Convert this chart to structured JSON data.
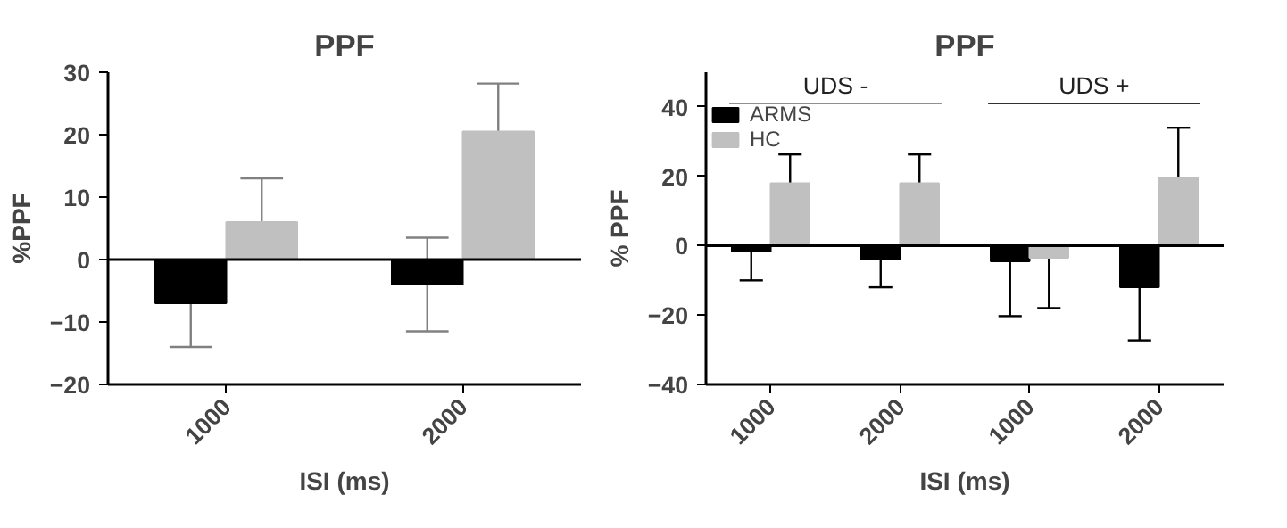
{
  "chart_data": [
    {
      "type": "bar",
      "title": "PPF",
      "xlabel": "ISI (ms)",
      "ylabel": "%PPF",
      "categories": [
        "1000",
        "2000"
      ],
      "ylim": [
        -20,
        30
      ],
      "yticks": [
        -20,
        -10,
        0,
        10,
        20,
        30
      ],
      "grid": false,
      "series": [
        {
          "color": "#000000",
          "values": [
            -7,
            -4
          ],
          "errors": [
            [
              -14,
              -7
            ],
            7.5
          ]
        },
        {
          "color": "#c0c0c0",
          "values": [
            6,
            20.5
          ],
          "errors": [
            [
              6,
              13
            ],
            [
              20.5,
              28.2
            ]
          ]
        }
      ],
      "ref_lines": [
        {
          "axis": "y",
          "value": 0,
          "color": "#000000"
        }
      ]
    },
    {
      "type": "bar",
      "title": "PPF",
      "xlabel": "ISI (ms)",
      "ylabel": "% PPF",
      "categories": [
        "1000",
        "2000",
        "1000",
        "2000"
      ],
      "ylim": [
        -40,
        50
      ],
      "yticks": [
        -40,
        -20,
        0,
        20,
        40
      ],
      "grid": false,
      "legend": "top left",
      "annotations": [
        "UDS -",
        "UDS +"
      ],
      "series": [
        {
          "name": "ARMS",
          "color": "#000000",
          "values": [
            -1.7,
            -4,
            -4.5,
            -12
          ],
          "errors": [
            [
              -10,
              -1.7
            ],
            [
              -12,
              -4
            ],
            [
              -20.3,
              -4.5
            ],
            [
              -27.3,
              -12
            ]
          ]
        },
        {
          "name": "HC",
          "color": "#c0c0c0",
          "values": [
            18,
            18,
            -3.5,
            19.5
          ],
          "errors": [
            [
              18,
              26.3
            ],
            [
              18,
              26.3
            ],
            [
              -18,
              -3.5
            ],
            [
              19.5,
              34
            ]
          ]
        }
      ],
      "ref_lines": [
        {
          "axis": "y",
          "value": 0,
          "color": "#000000"
        }
      ]
    }
  ]
}
